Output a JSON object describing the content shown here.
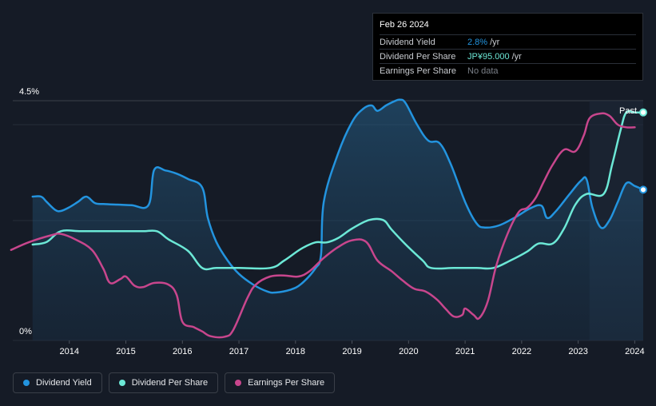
{
  "tooltip": {
    "date": "Feb 26 2024",
    "rows": [
      {
        "key": "Dividend Yield",
        "value": "2.8%",
        "unit": "/yr"
      },
      {
        "key": "Dividend Per Share",
        "value": "JP¥95.000",
        "unit": "/yr"
      },
      {
        "key": "Earnings Per Share",
        "value": "No data",
        "unit": ""
      }
    ]
  },
  "legend": {
    "items": [
      {
        "label": "Dividend Yield",
        "color": "#2394df"
      },
      {
        "label": "Dividend Per Share",
        "color": "#6ce8d6"
      },
      {
        "label": "Earnings Per Share",
        "color": "#c8468d"
      }
    ]
  },
  "chart_data": {
    "type": "line",
    "title": "",
    "xlabel": "",
    "ylabel": "",
    "ylim": [
      0,
      4.5
    ],
    "y_axis_labels": [
      "4.5%",
      "0%"
    ],
    "x_ticks": [
      "2014",
      "2015",
      "2016",
      "2017",
      "2018",
      "2019",
      "2020",
      "2021",
      "2022",
      "2023",
      "2024"
    ],
    "xlim": [
      2013.0,
      2024.15
    ],
    "past_label": "Past",
    "forecast_start": 2023.2,
    "series": [
      {
        "name": "Dividend Yield",
        "color": "#2394df",
        "fill": true,
        "points": [
          [
            2013.35,
            2.7
          ],
          [
            2013.5,
            2.7
          ],
          [
            2013.6,
            2.6
          ],
          [
            2013.75,
            2.45
          ],
          [
            2013.85,
            2.43
          ],
          [
            2014.0,
            2.5
          ],
          [
            2014.15,
            2.6
          ],
          [
            2014.3,
            2.7
          ],
          [
            2014.45,
            2.58
          ],
          [
            2014.6,
            2.56
          ],
          [
            2014.85,
            2.55
          ],
          [
            2015.1,
            2.54
          ],
          [
            2015.4,
            2.54
          ],
          [
            2015.5,
            3.2
          ],
          [
            2015.7,
            3.19
          ],
          [
            2015.9,
            3.13
          ],
          [
            2016.1,
            3.03
          ],
          [
            2016.35,
            2.87
          ],
          [
            2016.45,
            2.3
          ],
          [
            2016.6,
            1.85
          ],
          [
            2016.8,
            1.5
          ],
          [
            2017.0,
            1.25
          ],
          [
            2017.25,
            1.05
          ],
          [
            2017.5,
            0.92
          ],
          [
            2017.65,
            0.9
          ],
          [
            2017.9,
            0.95
          ],
          [
            2018.1,
            1.06
          ],
          [
            2018.35,
            1.35
          ],
          [
            2018.45,
            1.6
          ],
          [
            2018.5,
            2.6
          ],
          [
            2018.75,
            3.5
          ],
          [
            2019.0,
            4.1
          ],
          [
            2019.2,
            4.35
          ],
          [
            2019.35,
            4.41
          ],
          [
            2019.45,
            4.31
          ],
          [
            2019.6,
            4.41
          ],
          [
            2019.75,
            4.49
          ],
          [
            2019.85,
            4.52
          ],
          [
            2019.95,
            4.45
          ],
          [
            2020.15,
            4.05
          ],
          [
            2020.35,
            3.75
          ],
          [
            2020.55,
            3.7
          ],
          [
            2020.75,
            3.3
          ],
          [
            2021.0,
            2.6
          ],
          [
            2021.2,
            2.2
          ],
          [
            2021.35,
            2.12
          ],
          [
            2021.6,
            2.16
          ],
          [
            2021.9,
            2.32
          ],
          [
            2022.15,
            2.48
          ],
          [
            2022.35,
            2.53
          ],
          [
            2022.45,
            2.3
          ],
          [
            2022.6,
            2.42
          ],
          [
            2022.85,
            2.75
          ],
          [
            2023.05,
            3.0
          ],
          [
            2023.15,
            3.02
          ],
          [
            2023.25,
            2.5
          ],
          [
            2023.4,
            2.12
          ],
          [
            2023.55,
            2.25
          ],
          [
            2023.7,
            2.6
          ],
          [
            2023.85,
            2.95
          ],
          [
            2024.0,
            2.9
          ],
          [
            2024.15,
            2.83
          ]
        ]
      },
      {
        "name": "Dividend Per Share",
        "color": "#6ce8d6",
        "fill": false,
        "points": [
          [
            2013.35,
            1.8
          ],
          [
            2013.6,
            1.85
          ],
          [
            2013.85,
            2.05
          ],
          [
            2014.2,
            2.05
          ],
          [
            2014.6,
            2.05
          ],
          [
            2015.0,
            2.05
          ],
          [
            2015.3,
            2.05
          ],
          [
            2015.55,
            2.05
          ],
          [
            2015.75,
            1.9
          ],
          [
            2016.1,
            1.68
          ],
          [
            2016.35,
            1.36
          ],
          [
            2016.6,
            1.36
          ],
          [
            2017.0,
            1.36
          ],
          [
            2017.55,
            1.36
          ],
          [
            2017.8,
            1.5
          ],
          [
            2018.1,
            1.72
          ],
          [
            2018.35,
            1.84
          ],
          [
            2018.55,
            1.84
          ],
          [
            2018.75,
            1.92
          ],
          [
            2019.0,
            2.1
          ],
          [
            2019.3,
            2.26
          ],
          [
            2019.55,
            2.26
          ],
          [
            2019.7,
            2.08
          ],
          [
            2019.95,
            1.8
          ],
          [
            2020.25,
            1.5
          ],
          [
            2020.4,
            1.36
          ],
          [
            2020.8,
            1.36
          ],
          [
            2021.2,
            1.36
          ],
          [
            2021.5,
            1.36
          ],
          [
            2021.8,
            1.5
          ],
          [
            2022.1,
            1.67
          ],
          [
            2022.3,
            1.82
          ],
          [
            2022.55,
            1.82
          ],
          [
            2022.75,
            2.1
          ],
          [
            2022.95,
            2.55
          ],
          [
            2023.15,
            2.75
          ],
          [
            2023.45,
            2.75
          ],
          [
            2023.6,
            3.3
          ],
          [
            2023.75,
            3.95
          ],
          [
            2023.85,
            4.28
          ],
          [
            2024.0,
            4.28
          ],
          [
            2024.15,
            4.28
          ]
        ]
      },
      {
        "name": "Earnings Per Share",
        "color": "#c8468d",
        "fill": false,
        "points": [
          [
            2012.97,
            1.7
          ],
          [
            2013.3,
            1.85
          ],
          [
            2013.7,
            1.98
          ],
          [
            2013.85,
            2.0
          ],
          [
            2014.1,
            1.9
          ],
          [
            2014.4,
            1.7
          ],
          [
            2014.6,
            1.35
          ],
          [
            2014.72,
            1.08
          ],
          [
            2014.9,
            1.15
          ],
          [
            2015.0,
            1.2
          ],
          [
            2015.15,
            1.03
          ],
          [
            2015.3,
            1.0
          ],
          [
            2015.5,
            1.08
          ],
          [
            2015.75,
            1.05
          ],
          [
            2015.9,
            0.85
          ],
          [
            2016.0,
            0.35
          ],
          [
            2016.2,
            0.25
          ],
          [
            2016.35,
            0.17
          ],
          [
            2016.5,
            0.08
          ],
          [
            2016.75,
            0.07
          ],
          [
            2016.9,
            0.2
          ],
          [
            2017.15,
            0.8
          ],
          [
            2017.3,
            1.05
          ],
          [
            2017.55,
            1.2
          ],
          [
            2017.8,
            1.22
          ],
          [
            2018.05,
            1.2
          ],
          [
            2018.25,
            1.3
          ],
          [
            2018.5,
            1.55
          ],
          [
            2018.75,
            1.75
          ],
          [
            2019.0,
            1.88
          ],
          [
            2019.25,
            1.85
          ],
          [
            2019.45,
            1.5
          ],
          [
            2019.7,
            1.3
          ],
          [
            2019.9,
            1.12
          ],
          [
            2020.1,
            0.97
          ],
          [
            2020.3,
            0.92
          ],
          [
            2020.5,
            0.77
          ],
          [
            2020.65,
            0.6
          ],
          [
            2020.8,
            0.45
          ],
          [
            2020.95,
            0.48
          ],
          [
            2021.0,
            0.6
          ],
          [
            2021.15,
            0.48
          ],
          [
            2021.25,
            0.42
          ],
          [
            2021.4,
            0.73
          ],
          [
            2021.55,
            1.4
          ],
          [
            2021.75,
            2.0
          ],
          [
            2021.95,
            2.41
          ],
          [
            2022.1,
            2.49
          ],
          [
            2022.25,
            2.68
          ],
          [
            2022.4,
            3.0
          ],
          [
            2022.55,
            3.3
          ],
          [
            2022.75,
            3.58
          ],
          [
            2022.95,
            3.55
          ],
          [
            2023.1,
            3.85
          ],
          [
            2023.2,
            4.17
          ],
          [
            2023.4,
            4.26
          ],
          [
            2023.55,
            4.22
          ],
          [
            2023.7,
            4.05
          ],
          [
            2023.85,
            4.0
          ],
          [
            2024.0,
            4.0
          ]
        ]
      }
    ]
  }
}
